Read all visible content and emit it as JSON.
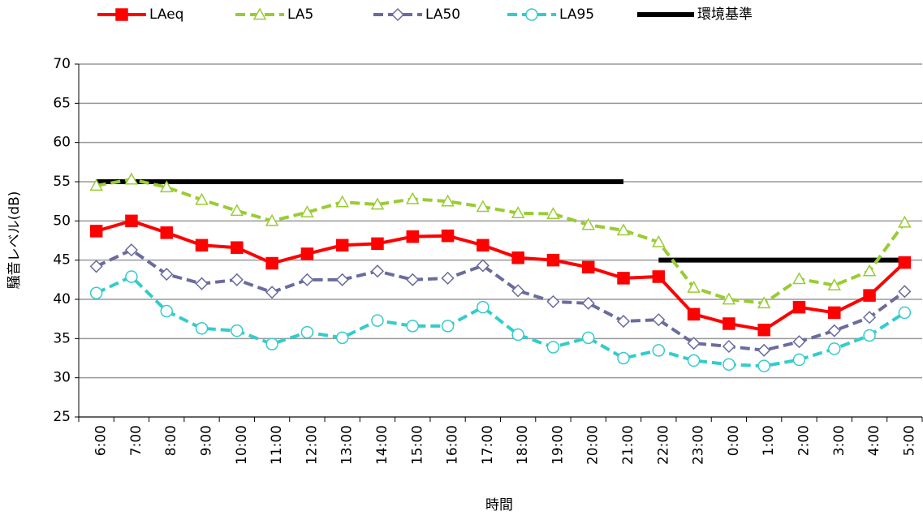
{
  "chart_data": {
    "type": "line",
    "x_label": "時間",
    "y_label": "騒音レベル(dB)",
    "categories": [
      "6:00",
      "7:00",
      "8:00",
      "9:00",
      "10:00",
      "11:00",
      "12:00",
      "13:00",
      "14:00",
      "15:00",
      "16:00",
      "17:00",
      "18:00",
      "19:00",
      "20:00",
      "21:00",
      "22:00",
      "23:00",
      "0:00",
      "1:00",
      "2:00",
      "3:00",
      "4:00",
      "5:00"
    ],
    "series": [
      {
        "name": "LAeq",
        "color": "#ff0000",
        "marker": "square",
        "dashed": false,
        "values": [
          48.7,
          50.0,
          48.5,
          46.9,
          46.6,
          44.6,
          45.8,
          46.9,
          47.1,
          48.0,
          48.1,
          46.9,
          45.3,
          45.0,
          44.1,
          42.7,
          42.9,
          38.1,
          36.9,
          36.1,
          39.0,
          38.3,
          40.5,
          44.7
        ]
      },
      {
        "name": "LA5",
        "color": "#99cc33",
        "marker": "triangle",
        "dashed": true,
        "values": [
          54.5,
          55.3,
          54.3,
          52.7,
          51.3,
          50.0,
          51.1,
          52.4,
          52.1,
          52.8,
          52.5,
          51.8,
          51.0,
          50.9,
          49.5,
          48.8,
          47.3,
          41.5,
          40.0,
          39.5,
          42.6,
          41.8,
          43.6,
          49.8
        ]
      },
      {
        "name": "LA50",
        "color": "#6b6b9e",
        "marker": "diamond",
        "dashed": true,
        "values": [
          44.2,
          46.3,
          43.2,
          42.0,
          42.5,
          40.9,
          42.5,
          42.5,
          43.6,
          42.5,
          42.7,
          44.3,
          41.1,
          39.7,
          39.5,
          37.2,
          37.4,
          34.4,
          34.0,
          33.5,
          34.6,
          36.0,
          37.7,
          41.0
        ]
      },
      {
        "name": "LA95",
        "color": "#33cccc",
        "marker": "circle",
        "dashed": true,
        "values": [
          40.8,
          42.9,
          38.5,
          36.3,
          36.0,
          34.3,
          35.8,
          35.1,
          37.3,
          36.6,
          36.6,
          39.0,
          35.5,
          33.9,
          35.1,
          32.5,
          33.5,
          32.2,
          31.7,
          31.5,
          32.3,
          33.7,
          35.4,
          38.3
        ]
      }
    ],
    "standard": {
      "name": "環境基準",
      "color": "#000000",
      "segments": [
        {
          "value": 55,
          "from": "6:00",
          "to": "21:00"
        },
        {
          "value": 45,
          "from": "22:00",
          "to": "5:00"
        }
      ]
    },
    "ylim": [
      25,
      70
    ],
    "yticks": [
      25,
      30,
      35,
      40,
      45,
      50,
      55,
      60,
      65,
      70
    ],
    "grid": true
  }
}
